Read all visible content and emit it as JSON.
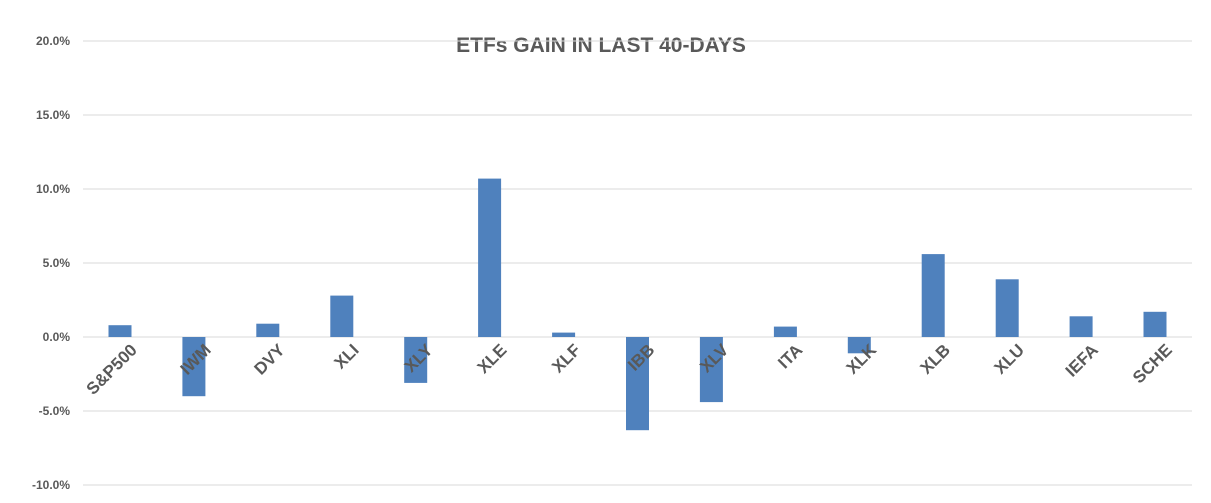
{
  "chart_data": {
    "type": "bar",
    "title": "ETFs GAIN IN LAST 40-DAYS",
    "categories": [
      "S&P500",
      "IWM",
      "DVY",
      "XLI",
      "XLY",
      "XLE",
      "XLF",
      "IBB",
      "XLV",
      "ITA",
      "XLK",
      "XLB",
      "XLU",
      "IEFA",
      "SCHE"
    ],
    "series": [
      {
        "values": [
          0.8,
          -4.0,
          0.9,
          2.8,
          -3.1,
          10.7,
          0.3,
          -6.3,
          -4.4,
          0.7,
          -1.1,
          5.6,
          3.9,
          1.4,
          1.7
        ],
        "color": "#4f81bd"
      }
    ],
    "yticks": [
      20,
      15,
      10,
      5,
      0,
      -5,
      -10
    ],
    "ytick_labels": [
      "20.0%",
      "15.0%",
      "10.0%",
      "5.0%",
      "0.0%",
      "-5.0%",
      "-10.0%"
    ],
    "ylim": [
      -10,
      20
    ],
    "grid": true,
    "legend": false
  }
}
